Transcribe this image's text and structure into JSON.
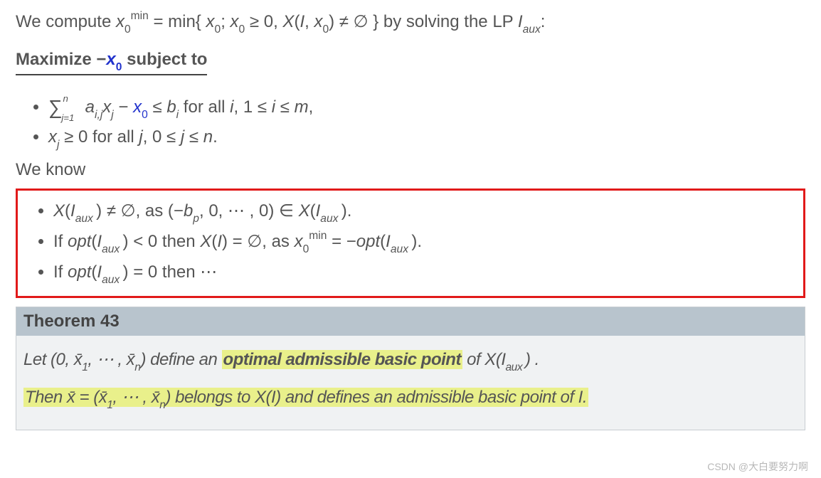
{
  "intro": {
    "prefix": "We compute ",
    "x0min_html": "<span class='mi'>x</span><span class='sub'>0</span><span class='sup'>min</span>",
    "eqmid": " = min{",
    "setpart1": "<span class='mi'>x</span><span class='sub'>0</span>; <span class='mi'>x</span><span class='sub'>0</span> ≥ 0, <span class='mi'>X</span>(<span class='mi'>I</span>, <span class='mi'>x</span><span class='sub'>0</span>) ≠ ∅",
    "setend": "} by solving the LP ",
    "iaux": "<span class='mi'>I</span><span class='sub mi'>aux</span>:"
  },
  "maximize": {
    "label": "Maximize",
    "objective": " −<span class='blue'><span class='mi'>x</span><span class='sub'>0</span></span> ",
    "subject": "subject to"
  },
  "constraints": [
    "<span class='sumsym'>∑</span><span class='sumsub'>j=1</span><span class='sumsup'>n</span>&nbsp;<span class='mi'>a</span><span class='sub mi'>i,j</span><span class='mi'>x</span><span class='sub mi'>j</span> − <span class='blue'><span class='mi'>x</span><span class='sub'>0</span></span> ≤ <span class='mi'>b</span><span class='sub mi'>i</span> for all <span class='mi'>i</span>, 1 ≤ <span class='mi'>i</span> ≤ <span class='mi'>m</span>,",
    "<span class='mi'>x</span><span class='sub mi'>j</span> ≥ 0 for all <span class='mi'>j</span>, 0 ≤ <span class='mi'>j</span> ≤ <span class='mi'>n</span>."
  ],
  "weknow_label": "We know",
  "weknow": [
    "<span class='mi'>X</span>(<span class='mi'>I</span><span class='sub mi'>aux </span>) ≠ ∅, as (−<span class='mi'>b</span><span class='sub mi'>p</span>, 0, ⋯ , 0) ∈ <span class='mi'>X</span>(<span class='mi'>I</span><span class='sub mi'>aux </span>).",
    "If <span class='mi'>opt</span>(<span class='mi'>I</span><span class='sub mi'>aux </span>) &lt; 0 then <span class='mi'>X</span>(<span class='mi'>I</span>) = ∅, as <span class='mi'>x</span><span class='sub'>0</span><span class='sup'>min</span> = −<span class='mi'>opt</span>(<span class='mi'>I</span><span class='sub mi'>aux </span>).",
    "If <span class='mi'>opt</span>(<span class='mi'>I</span><span class='sub mi'>aux </span>) = 0 then ⋯"
  ],
  "theorem": {
    "head": "Theorem 43",
    "line1_a": "Let ",
    "line1_b": "(0, <span class='mi'>x̄</span><span class='sub'>1</span>, ⋯ , <span class='mi'>x̄</span><span class='sub mi'>n</span>)",
    "line1_c": " define an ",
    "line1_hl": "optimal admissible basic point",
    "line1_d": " of ",
    "line1_e": "<span class='mi'>X</span>(<span class='mi'>I</span><span class='sub mi'>aux </span>)",
    "line1_f": ".",
    "line2_hl": "Then <span class='mi'>x̄</span> = (<span class='mi'>x̄</span><span class='sub'>1</span>, ⋯ , <span class='mi'>x̄</span><span class='sub mi'>n</span>) belongs to <span class='mi'>X</span>(<span class='mi'>I</span>) and defines an admissible basic point of <span class='mi'>I</span>."
  },
  "watermark": "CSDN @大白要努力啊",
  "colors": {
    "text": "#555555",
    "blue": "#2233cc",
    "red_border": "#e11a1a",
    "thm_head_bg": "#b8c4cd",
    "thm_body_bg": "#f0f2f3",
    "thm_border": "#c8cdd1",
    "highlight": "#e9f08b",
    "watermark": "#b8b8b8",
    "background": "#ffffff"
  },
  "typography": {
    "base_fontsize_pt": 18,
    "family": "Arial/Helvetica"
  }
}
